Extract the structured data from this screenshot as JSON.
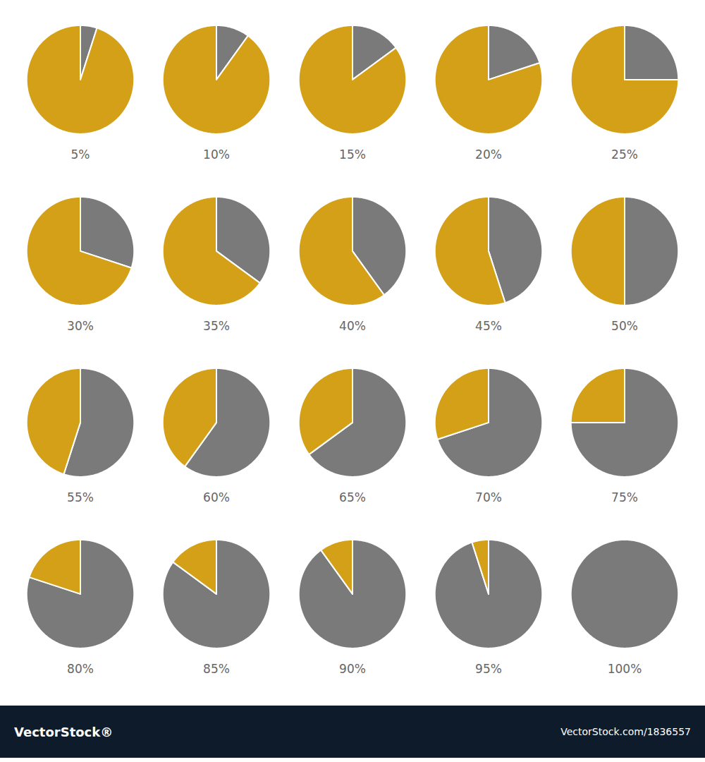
{
  "chart_data": {
    "type": "pie",
    "annotations": [
      "VectorStock®",
      "VectorStock.com/1836557"
    ],
    "series": [
      {
        "values": [
          5,
          95
        ],
        "value_labels": [
          "5%",
          null
        ],
        "colors": [
          "#7a7a7a",
          "#D4A017"
        ]
      },
      {
        "values": [
          10,
          90
        ],
        "value_labels": [
          "10%",
          null
        ],
        "colors": [
          "#7a7a7a",
          "#D4A017"
        ]
      },
      {
        "values": [
          15,
          85
        ],
        "value_labels": [
          "15%",
          null
        ],
        "colors": [
          "#7a7a7a",
          "#D4A017"
        ]
      },
      {
        "values": [
          20,
          80
        ],
        "value_labels": [
          "20%",
          null
        ],
        "colors": [
          "#7a7a7a",
          "#D4A017"
        ]
      },
      {
        "values": [
          25,
          75
        ],
        "value_labels": [
          "25%",
          null
        ],
        "colors": [
          "#7a7a7a",
          "#D4A017"
        ]
      },
      {
        "values": [
          30,
          70
        ],
        "value_labels": [
          "30%",
          null
        ],
        "colors": [
          "#7a7a7a",
          "#D4A017"
        ]
      },
      {
        "values": [
          35,
          65
        ],
        "value_labels": [
          "35%",
          null
        ],
        "colors": [
          "#7a7a7a",
          "#D4A017"
        ]
      },
      {
        "values": [
          40,
          60
        ],
        "value_labels": [
          "40%",
          null
        ],
        "colors": [
          "#7a7a7a",
          "#D4A017"
        ]
      },
      {
        "values": [
          45,
          55
        ],
        "value_labels": [
          "45%",
          null
        ],
        "colors": [
          "#7a7a7a",
          "#D4A017"
        ]
      },
      {
        "values": [
          50,
          50
        ],
        "value_labels": [
          "50%",
          null
        ],
        "colors": [
          "#7a7a7a",
          "#D4A017"
        ]
      },
      {
        "values": [
          55,
          45
        ],
        "value_labels": [
          "55%",
          null
        ],
        "colors": [
          "#7a7a7a",
          "#D4A017"
        ]
      },
      {
        "values": [
          60,
          40
        ],
        "value_labels": [
          "60%",
          null
        ],
        "colors": [
          "#7a7a7a",
          "#D4A017"
        ]
      },
      {
        "values": [
          65,
          35
        ],
        "value_labels": [
          "65%",
          null
        ],
        "colors": [
          "#7a7a7a",
          "#D4A017"
        ]
      },
      {
        "values": [
          70,
          30
        ],
        "value_labels": [
          "70%",
          null
        ],
        "colors": [
          "#7a7a7a",
          "#D4A017"
        ]
      },
      {
        "values": [
          75,
          25
        ],
        "value_labels": [
          "75%",
          null
        ],
        "colors": [
          "#7a7a7a",
          "#D4A017"
        ]
      },
      {
        "values": [
          80,
          20
        ],
        "value_labels": [
          "80%",
          null
        ],
        "colors": [
          "#7a7a7a",
          "#D4A017"
        ]
      },
      {
        "values": [
          85,
          15
        ],
        "value_labels": [
          "85%",
          null
        ],
        "colors": [
          "#7a7a7a",
          "#D4A017"
        ]
      },
      {
        "values": [
          90,
          10
        ],
        "value_labels": [
          "90%",
          null
        ],
        "colors": [
          "#7a7a7a",
          "#D4A017"
        ]
      },
      {
        "values": [
          95,
          5
        ],
        "value_labels": [
          "95%",
          null
        ],
        "colors": [
          "#7a7a7a",
          "#D4A017"
        ]
      },
      {
        "values": [
          100
        ],
        "value_labels": [
          "100%"
        ],
        "colors": [
          "#7a7a7a"
        ]
      }
    ]
  }
}
